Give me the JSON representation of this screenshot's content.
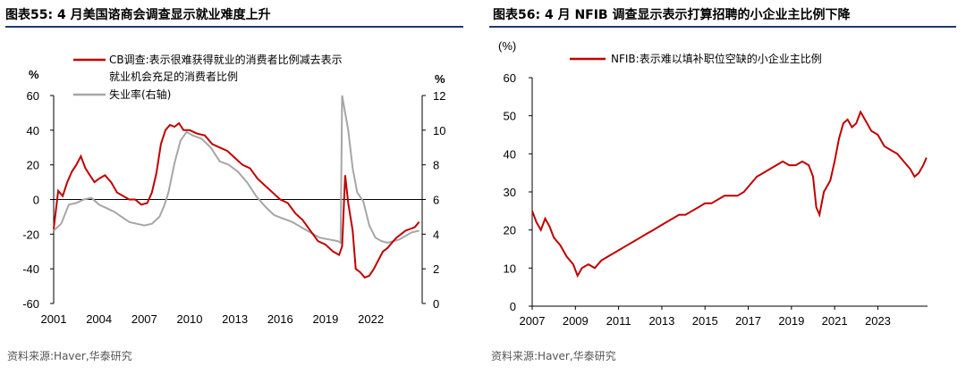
{
  "left": {
    "title": "图表55:  4 月美国谘商会调查显示就业难度上升",
    "source": "资料来源:Haver,华泰研究",
    "colors": {
      "cb": "#c00000",
      "unemp": "#a6a6a6"
    },
    "chart_data": {
      "type": "line",
      "left_unit": "%",
      "right_unit": "%",
      "x_ticks": [
        "2001",
        "2004",
        "2007",
        "2010",
        "2013",
        "2016",
        "2019",
        "2022"
      ],
      "x_range": [
        2001,
        2025.4
      ],
      "left_ylim": [
        -60,
        60
      ],
      "left_ticks": [
        "60",
        "40",
        "20",
        "0",
        "-20",
        "-40",
        "-60"
      ],
      "right_ylim": [
        0,
        12
      ],
      "right_ticks": [
        "12",
        "10",
        "8",
        "6",
        "4",
        "2",
        "0"
      ],
      "series": [
        {
          "name": "CB调查:表示很难获得就业的消费者比例减去表示就业机会充足的消费者比例",
          "legend_line1": "CB调查:表示很难获得就业的消费者比例减去表示",
          "legend_line2": "就业机会充足的消费者比例",
          "axis": "left",
          "x": [
            2001.0,
            2001.3,
            2001.6,
            2001.9,
            2002.2,
            2002.5,
            2002.8,
            2003.1,
            2003.4,
            2003.7,
            2004.0,
            2004.4,
            2004.8,
            2005.2,
            2005.6,
            2006.0,
            2006.4,
            2006.8,
            2007.2,
            2007.5,
            2007.8,
            2008.1,
            2008.4,
            2008.7,
            2009.0,
            2009.3,
            2009.6,
            2010.0,
            2010.5,
            2011.0,
            2011.5,
            2012.0,
            2012.5,
            2013.0,
            2013.5,
            2014.0,
            2014.5,
            2015.0,
            2015.5,
            2016.0,
            2016.5,
            2017.0,
            2017.5,
            2018.0,
            2018.5,
            2019.0,
            2019.5,
            2019.9,
            2020.1,
            2020.3,
            2020.5,
            2020.8,
            2021.0,
            2021.3,
            2021.6,
            2021.9,
            2022.2,
            2022.5,
            2022.8,
            2023.1,
            2023.4,
            2023.7,
            2024.0,
            2024.3,
            2024.6,
            2024.9,
            2025.2
          ],
          "values": [
            -17,
            5,
            2,
            10,
            16,
            20,
            25,
            18,
            14,
            10,
            12,
            14,
            10,
            4,
            2,
            0,
            0,
            -3,
            -2,
            4,
            15,
            32,
            40,
            43,
            42,
            44,
            40,
            40,
            38,
            37,
            32,
            30,
            28,
            24,
            20,
            18,
            12,
            8,
            4,
            0,
            -2,
            -8,
            -12,
            -18,
            -24,
            -26,
            -30,
            -32,
            -27,
            14,
            -2,
            -18,
            -40,
            -42,
            -45,
            -44,
            -40,
            -35,
            -30,
            -28,
            -25,
            -22,
            -20,
            -18,
            -17,
            -16,
            -13
          ]
        },
        {
          "name": "失业率(右轴)",
          "axis": "right",
          "x": [
            2001.0,
            2001.5,
            2002.0,
            2002.5,
            2003.0,
            2003.5,
            2004.0,
            2004.5,
            2005.0,
            2005.5,
            2006.0,
            2006.5,
            2007.0,
            2007.5,
            2008.0,
            2008.3,
            2008.6,
            2009.0,
            2009.4,
            2009.8,
            2010.2,
            2010.8,
            2011.4,
            2012.0,
            2012.6,
            2013.2,
            2013.8,
            2014.4,
            2015.0,
            2015.6,
            2016.2,
            2016.8,
            2017.4,
            2018.0,
            2018.6,
            2019.2,
            2019.8,
            2020.0,
            2020.1,
            2020.3,
            2020.5,
            2020.8,
            2021.1,
            2021.5,
            2021.9,
            2022.3,
            2022.7,
            2023.1,
            2023.5,
            2023.9,
            2024.3,
            2024.7,
            2025.2
          ],
          "values": [
            4.2,
            4.6,
            5.7,
            5.8,
            6.0,
            6.1,
            5.7,
            5.5,
            5.3,
            5.0,
            4.7,
            4.6,
            4.5,
            4.6,
            5.0,
            5.6,
            6.4,
            8.1,
            9.4,
            9.9,
            9.7,
            9.5,
            9.0,
            8.2,
            8.0,
            7.6,
            7.0,
            6.2,
            5.6,
            5.1,
            4.9,
            4.7,
            4.4,
            4.1,
            3.8,
            3.7,
            3.6,
            3.5,
            12.0,
            11.0,
            10.0,
            7.8,
            6.4,
            5.9,
            4.5,
            3.8,
            3.6,
            3.5,
            3.6,
            3.7,
            3.9,
            4.1,
            4.2
          ]
        }
      ]
    }
  },
  "right": {
    "title": "图表56:  4 月 NFIB 调查显示表示打算招聘的小企业主比例下降",
    "source": "资料来源:Haver,华泰研究",
    "colors": {
      "nfib": "#c00000"
    },
    "chart_data": {
      "type": "line",
      "unit": "(%)",
      "x_ticks": [
        "2007",
        "2009",
        "2011",
        "2013",
        "2015",
        "2017",
        "2019",
        "2021",
        "2023"
      ],
      "x_range": [
        2007,
        2025.3
      ],
      "ylim": [
        0,
        60
      ],
      "y_ticks": [
        "60",
        "50",
        "40",
        "30",
        "20",
        "10",
        "0"
      ],
      "series": [
        {
          "name": "NFIB:表示难以填补职位空缺的小企业主比例",
          "x": [
            2007.0,
            2007.2,
            2007.4,
            2007.6,
            2007.8,
            2008.0,
            2008.3,
            2008.6,
            2008.9,
            2009.1,
            2009.3,
            2009.6,
            2009.9,
            2010.2,
            2010.5,
            2010.8,
            2011.1,
            2011.4,
            2011.7,
            2012.0,
            2012.3,
            2012.6,
            2012.9,
            2013.2,
            2013.5,
            2013.8,
            2014.1,
            2014.4,
            2014.7,
            2015.0,
            2015.3,
            2015.6,
            2015.9,
            2016.2,
            2016.5,
            2016.8,
            2017.1,
            2017.4,
            2017.7,
            2018.0,
            2018.3,
            2018.6,
            2018.9,
            2019.2,
            2019.5,
            2019.8,
            2020.0,
            2020.15,
            2020.3,
            2020.5,
            2020.8,
            2021.0,
            2021.2,
            2021.4,
            2021.6,
            2021.8,
            2022.0,
            2022.2,
            2022.4,
            2022.7,
            2023.0,
            2023.3,
            2023.6,
            2023.9,
            2024.2,
            2024.5,
            2024.7,
            2024.9,
            2025.1,
            2025.25
          ],
          "values": [
            25,
            22,
            20,
            23,
            21,
            18,
            16,
            13,
            11,
            8,
            10,
            11,
            10,
            12,
            13,
            14,
            15,
            16,
            17,
            18,
            19,
            20,
            21,
            22,
            23,
            24,
            24,
            25,
            26,
            27,
            27,
            28,
            29,
            29,
            29,
            30,
            32,
            34,
            35,
            36,
            37,
            38,
            37,
            37,
            38,
            37,
            34,
            26,
            24,
            30,
            33,
            38,
            44,
            48,
            49,
            47,
            48,
            51,
            49,
            46,
            45,
            42,
            41,
            40,
            38,
            36,
            34,
            35,
            37,
            39
          ]
        }
      ]
    }
  }
}
